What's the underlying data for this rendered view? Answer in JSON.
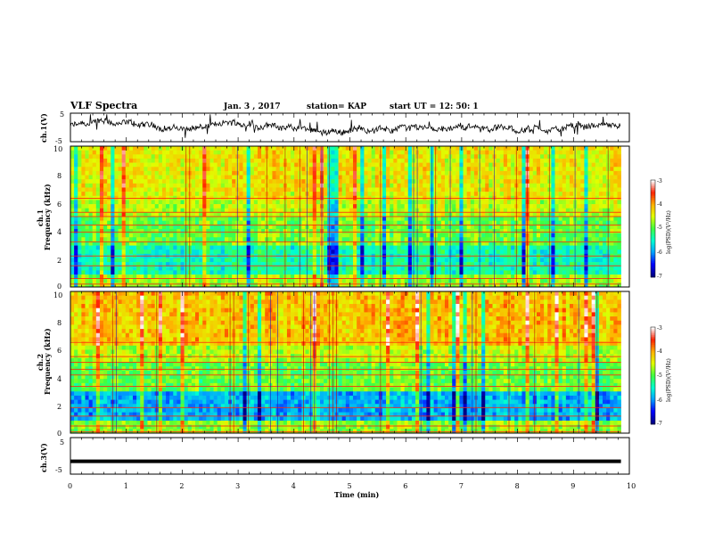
{
  "header": {
    "title": "VLF Spectra",
    "date": "Jan. 3 , 2017",
    "station": "station= KAP",
    "start": "start UT =   12: 50: 1"
  },
  "chart_data": [
    {
      "type": "line",
      "panel": "ch1-waveform",
      "ylabel": "ch.1(V)",
      "ylim": [
        -5,
        5
      ],
      "yticks": [
        "5",
        "-5"
      ],
      "xlim": [
        0,
        10
      ],
      "x_range": [
        0,
        9.85
      ],
      "series": [
        {
          "values_note": "noisy voltage trace",
          "mean": 0.0,
          "amplitude": 3.0
        }
      ]
    },
    {
      "type": "heatmap",
      "panel": "ch1-spectrogram",
      "ylabel": "ch.1",
      "ylabel2": "Frequency (kHz)",
      "ylim": [
        0,
        10
      ],
      "yticks": [
        "0",
        "2",
        "4",
        "6",
        "8",
        "10"
      ],
      "xlim": [
        0,
        10
      ],
      "x_range": [
        0,
        9.85
      ],
      "colorbar": {
        "label": "log(PSD)(V²/Hz)",
        "ticks": [
          "-3",
          "-4",
          "-5",
          "-6",
          "-7"
        ],
        "range": [
          -7,
          -3
        ]
      }
    },
    {
      "type": "heatmap",
      "panel": "ch2-spectrogram",
      "ylabel": "ch.2",
      "ylabel2": "Frequency (kHz)",
      "ylim": [
        0,
        10
      ],
      "yticks": [
        "0",
        "2",
        "4",
        "6",
        "8",
        "10"
      ],
      "xlim": [
        0,
        10
      ],
      "x_range": [
        0,
        9.85
      ],
      "colorbar": {
        "label": "log(PSD)(V²/Hz)",
        "ticks": [
          "-3",
          "-4",
          "-5",
          "-6",
          "-7"
        ],
        "range": [
          -7,
          -3
        ]
      }
    },
    {
      "type": "line",
      "panel": "ch3-waveform",
      "ylabel": "ch.3(V)",
      "ylim": [
        -5,
        5
      ],
      "yticks": [
        "5",
        "-5"
      ],
      "xlim": [
        0,
        10
      ],
      "x_range": [
        0,
        9.85
      ],
      "series": [
        {
          "values_note": "constant level",
          "level": -1.5
        }
      ]
    }
  ],
  "xaxis": {
    "label": "Time (min)",
    "ticks": [
      "0",
      "1",
      "2",
      "3",
      "4",
      "5",
      "6",
      "7",
      "8",
      "9",
      "10"
    ]
  },
  "colors": {
    "trace": "#000000",
    "axes": "#000000",
    "colormap": [
      "#000080",
      "#0000ff",
      "#00a0ff",
      "#00ffd0",
      "#40ff40",
      "#e0ff00",
      "#ffb000",
      "#ff2000",
      "#ffffff"
    ]
  }
}
